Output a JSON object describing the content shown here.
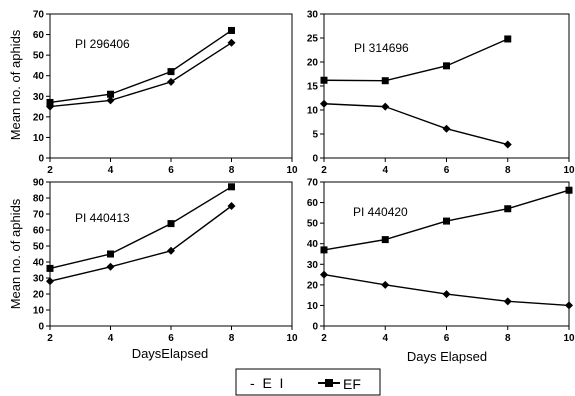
{
  "chart_data": [
    {
      "type": "line",
      "title": "PI 296406",
      "xlim": [
        2,
        10
      ],
      "ylim": [
        0,
        70
      ],
      "xticks": [
        "2",
        "4",
        "6",
        "8",
        "10"
      ],
      "yticks": [
        "0",
        "10",
        "20",
        "30",
        "40",
        "50",
        "60",
        "70"
      ],
      "x": [
        2,
        4,
        6,
        8
      ],
      "series": [
        {
          "marker": "diamond",
          "values": [
            25,
            28,
            37,
            56
          ]
        },
        {
          "marker": "square",
          "values": [
            27,
            31,
            42,
            62
          ]
        }
      ]
    },
    {
      "type": "line",
      "title": "PI 314696",
      "xlim": [
        2,
        10
      ],
      "ylim": [
        0,
        30
      ],
      "xticks": [
        "2",
        "4",
        "6",
        "8",
        "10"
      ],
      "yticks": [
        "0",
        "5",
        "10",
        "15",
        "20",
        "25",
        "30"
      ],
      "x": [
        2,
        4,
        6,
        8
      ],
      "series": [
        {
          "marker": "diamond",
          "values": [
            11.3,
            10.7,
            6.1,
            2.8
          ]
        },
        {
          "marker": "square",
          "values": [
            16.2,
            16.1,
            19.2,
            24.8
          ]
        }
      ]
    },
    {
      "type": "line",
      "title": "PI 440413",
      "xlim": [
        2,
        10
      ],
      "ylim": [
        0,
        90
      ],
      "xticks": [
        "2",
        "4",
        "6",
        "8",
        "10"
      ],
      "yticks": [
        "0",
        "10",
        "20",
        "30",
        "40",
        "50",
        "60",
        "70",
        "80",
        "90"
      ],
      "x": [
        2,
        4,
        6,
        8
      ],
      "series": [
        {
          "marker": "diamond",
          "values": [
            28,
            37,
            47,
            75
          ]
        },
        {
          "marker": "square",
          "values": [
            36,
            45,
            64,
            87
          ]
        }
      ]
    },
    {
      "type": "line",
      "title": "PI 440420",
      "xlim": [
        2,
        10
      ],
      "ylim": [
        0,
        70
      ],
      "xticks": [
        "2",
        "4",
        "6",
        "8",
        "10"
      ],
      "yticks": [
        "0",
        "10",
        "20",
        "30",
        "40",
        "50",
        "60",
        "70"
      ],
      "x": [
        2,
        4,
        6,
        8,
        10
      ],
      "series": [
        {
          "marker": "diamond",
          "values": [
            25,
            20,
            15.5,
            12,
            10
          ]
        },
        {
          "marker": "square",
          "values": [
            37,
            42,
            51,
            57,
            66
          ]
        }
      ]
    }
  ],
  "ylabel_top": "Mean no. of aphids",
  "ylabel_bottom": "Mean no. of aphids",
  "xlabel_left": "DaysElapsed",
  "xlabel_right": "Days Elapsed",
  "legend": {
    "placement": "bottom-center",
    "entries": [
      {
        "marker": "diamond",
        "label": "-  E  I"
      },
      {
        "marker": "square",
        "label": "EF"
      }
    ]
  }
}
